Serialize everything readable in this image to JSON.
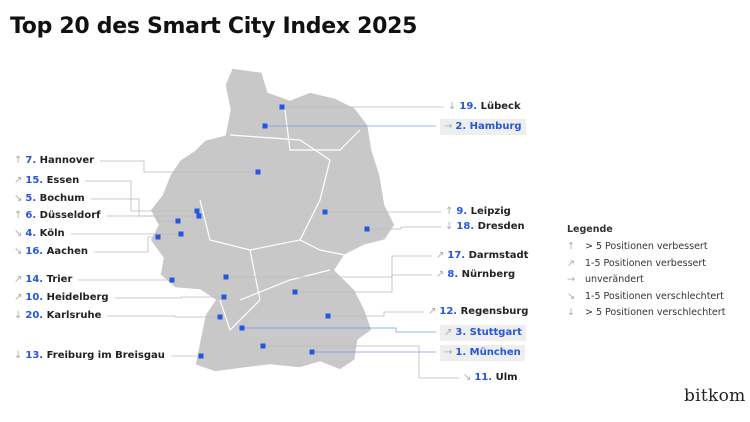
{
  "title": "Top 20 des Smart City Index 2025",
  "colors": {
    "accent": "#2457e0",
    "map": "#c8c8c8",
    "highlight_bg": "#eeeeee"
  },
  "cities": [
    {
      "rank": "19.",
      "name": "Lübeck",
      "trend": "down-strong",
      "side": "right",
      "highlight": false
    },
    {
      "rank": "2.",
      "name": "Hamburg",
      "trend": "same",
      "side": "right",
      "highlight": true
    },
    {
      "rank": "7.",
      "name": "Hannover",
      "trend": "up-strong",
      "side": "left",
      "highlight": false
    },
    {
      "rank": "15.",
      "name": "Essen",
      "trend": "up",
      "side": "left",
      "highlight": false
    },
    {
      "rank": "5.",
      "name": "Bochum",
      "trend": "down",
      "side": "left",
      "highlight": false
    },
    {
      "rank": "6.",
      "name": "Düsseldorf",
      "trend": "up-strong",
      "side": "left",
      "highlight": false
    },
    {
      "rank": "4.",
      "name": "Köln",
      "trend": "down",
      "side": "left",
      "highlight": false
    },
    {
      "rank": "16.",
      "name": "Aachen",
      "trend": "down",
      "side": "left",
      "highlight": false
    },
    {
      "rank": "9.",
      "name": "Leipzig",
      "trend": "up-strong",
      "side": "right",
      "highlight": false
    },
    {
      "rank": "18.",
      "name": "Dresden",
      "trend": "down-strong",
      "side": "right",
      "highlight": false
    },
    {
      "rank": "17.",
      "name": "Darmstadt",
      "trend": "up",
      "side": "right",
      "highlight": false
    },
    {
      "rank": "8.",
      "name": "Nürnberg",
      "trend": "up",
      "side": "right",
      "highlight": false
    },
    {
      "rank": "14.",
      "name": "Trier",
      "trend": "up",
      "side": "left",
      "highlight": false
    },
    {
      "rank": "10.",
      "name": "Heidelberg",
      "trend": "up",
      "side": "left",
      "highlight": false
    },
    {
      "rank": "20.",
      "name": "Karlsruhe",
      "trend": "down-strong",
      "side": "left",
      "highlight": false
    },
    {
      "rank": "12.",
      "name": "Regensburg",
      "trend": "up",
      "side": "right",
      "highlight": false
    },
    {
      "rank": "3.",
      "name": "Stuttgart",
      "trend": "up",
      "side": "right",
      "highlight": true
    },
    {
      "rank": "1.",
      "name": "München",
      "trend": "same",
      "side": "right",
      "highlight": true
    },
    {
      "rank": "13.",
      "name": "Freiburg im Breisgau",
      "trend": "down-strong",
      "side": "left",
      "highlight": false
    },
    {
      "rank": "11.",
      "name": "Ulm",
      "trend": "down",
      "side": "right",
      "highlight": false
    }
  ],
  "trend_icons": {
    "up-strong": "↑",
    "up": "↗",
    "same": "→",
    "down": "↘",
    "down-strong": "↓"
  },
  "legend": {
    "title": "Legende",
    "items": [
      {
        "trend": "up-strong",
        "label": "> 5 Positionen verbessert"
      },
      {
        "trend": "up",
        "label": "1-5 Positionen verbessert"
      },
      {
        "trend": "same",
        "label": "unverändert"
      },
      {
        "trend": "down",
        "label": "1-5 Positionen verschlechtert"
      },
      {
        "trend": "down-strong",
        "label": "> 5 Positionen verschlechtert"
      }
    ]
  },
  "logo": "bitkom"
}
